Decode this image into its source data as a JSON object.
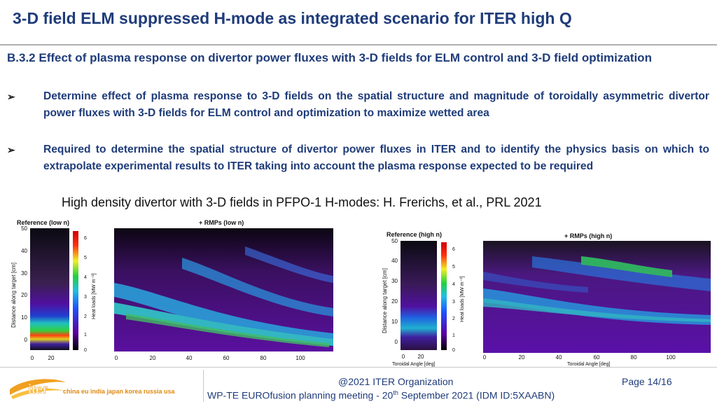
{
  "slide": {
    "title": "3-D field ELM suppressed H-mode as integrated scenario for ITER high Q",
    "section_heading": "B.3.2 Effect of plasma response on divertor power fluxes with 3-D fields for ELM control and 3-D field optimization",
    "bullets": [
      "Determine effect of plasma response to 3-D fields on the spatial structure and magnitude of toroidally asymmetric divertor power fluxes with 3-D fields for ELM control and optimization to maximize wetted area",
      "Required to determine the spatial structure of divertor power fluxes in ITER and to identify the physics basis on which to extrapolate experimental results to ITER taking into account the plasma response expected to be required"
    ],
    "caption": "High density divertor with 3-D fields in PFPO-1 H-modes: H. Frerichs, et al., PRL 2021"
  },
  "figures": {
    "left": {
      "ref_title": "Reference (low n)",
      "rmp_title": "+ RMPs (low n)",
      "ylabel": "Distance along target [cm]",
      "cbar_label": "Heat loads [MW m⁻²]",
      "yticks": [
        "50",
        "40",
        "30",
        "20",
        "10",
        "0"
      ],
      "xticks_ref": [
        "0",
        "20"
      ],
      "xticks_rmp": [
        "0",
        "20",
        "40",
        "60",
        "80",
        "100"
      ],
      "cbar_ticks": [
        "6",
        "5",
        "4",
        "3",
        "2",
        "1",
        "0"
      ]
    },
    "right": {
      "ref_title": "Reference (high n)",
      "rmp_title": "+ RMPs (high n)",
      "ylabel": "Distance along target [cm]",
      "cbar_label": "Heat loads [MW m⁻²]",
      "xlabel_ref": "Toroidal Angle [deg]",
      "xlabel_rmp": "Toroidal Angle [deg]",
      "yticks": [
        "50",
        "40",
        "30",
        "20",
        "10",
        "0"
      ],
      "xticks_ref": [
        "0",
        "20"
      ],
      "xticks_rmp": [
        "0",
        "20",
        "40",
        "60",
        "80",
        "100"
      ],
      "cbar_ticks": [
        "6",
        "5",
        "4",
        "3",
        "2",
        "1",
        "0"
      ]
    }
  },
  "footer": {
    "logo_word": "iter",
    "logo_members": "china eu india japan korea russia usa",
    "org": "@2021 ITER Organization",
    "meeting_pre": "WP-TE EUROfusion planning meeting -  20",
    "meeting_sup": "th",
    "meeting_post": " September 2021 (IDM ID:5XAABN)",
    "page": "Page 14/16"
  },
  "colors": {
    "title": "#1f3c7a",
    "heatmap_bg": "#4a0a78",
    "heatmap_band": "#3fb8d8",
    "logo_orange": "#f0a020"
  }
}
